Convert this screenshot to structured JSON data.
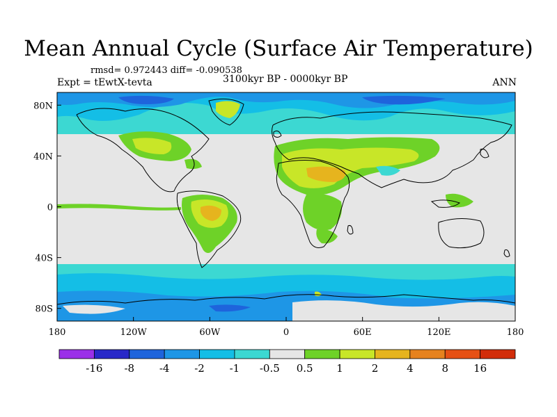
{
  "title": "Mean Annual Cycle (Surface Air Temperature)",
  "stats": "rmsd= 0.972443 diff= -0.090538",
  "experiment": "Expt = tEwtX-tevta",
  "period": "3100kyr BP - 0000kyr BP",
  "season": "ANN",
  "map": {
    "projection": "cylindrical-equidistant",
    "lon_range": [
      -180,
      180
    ],
    "lat_range": [
      -90,
      90
    ],
    "y_ticks": [
      {
        "lat": 80,
        "label": "80N"
      },
      {
        "lat": 40,
        "label": "40N"
      },
      {
        "lat": 0,
        "label": "0"
      },
      {
        "lat": -40,
        "label": "40S"
      },
      {
        "lat": -80,
        "label": "80S"
      }
    ],
    "x_ticks": [
      {
        "lon": -180,
        "label": "180"
      },
      {
        "lon": -120,
        "label": "120W"
      },
      {
        "lon": -60,
        "label": "60W"
      },
      {
        "lon": 0,
        "label": "0"
      },
      {
        "lon": 60,
        "label": "60E"
      },
      {
        "lon": 120,
        "label": "120E"
      },
      {
        "lon": 180,
        "label": "180"
      }
    ]
  },
  "colorbar": {
    "colors": [
      "#9b30e8",
      "#2828c8",
      "#1e64dc",
      "#1e96e6",
      "#14bee6",
      "#3cd8d2",
      "#e6e6e6",
      "#6ed228",
      "#c8e628",
      "#e6b41e",
      "#e6821e",
      "#e65014",
      "#d22d0a"
    ],
    "labels": [
      "-16",
      "-8",
      "-4",
      "-2",
      "-1",
      "-0.5",
      "0.5",
      "1",
      "2",
      "4",
      "8",
      "16"
    ]
  },
  "colors": {
    "neutral": "#e6e6e6",
    "light_cyan": "#3cd8d2",
    "cyan": "#14bee6",
    "blue": "#1e96e6",
    "dark_blue": "#1e64dc",
    "green": "#6ed228",
    "yellow_green": "#c8e628",
    "orange": "#e6b41e"
  }
}
